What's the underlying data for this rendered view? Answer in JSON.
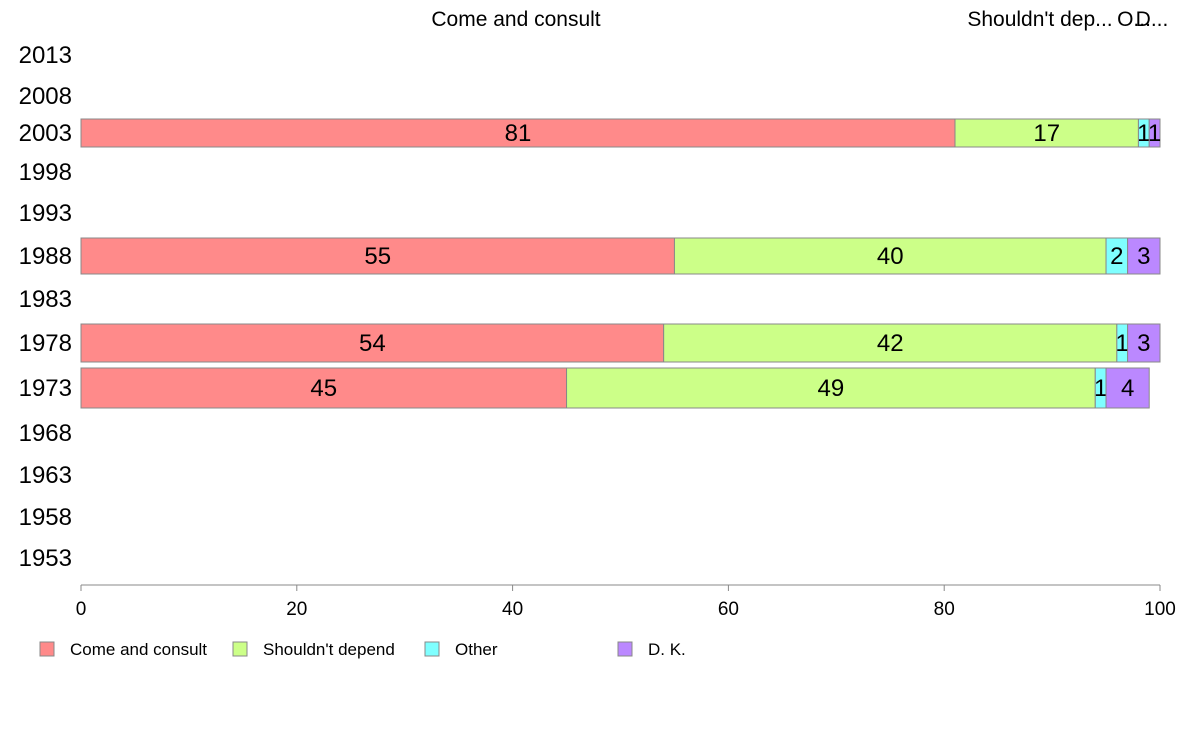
{
  "chart_data": {
    "type": "bar",
    "orientation": "horizontal",
    "stacked": true,
    "categories": [
      "2013",
      "2008",
      "2003",
      "1998",
      "1993",
      "1988",
      "1983",
      "1978",
      "1973",
      "1968",
      "1963",
      "1958",
      "1953"
    ],
    "series": [
      {
        "name": "Come and consult",
        "values": [
          null,
          null,
          81,
          null,
          null,
          55,
          null,
          54,
          45,
          null,
          null,
          null,
          null
        ],
        "color": "#ff8a8a"
      },
      {
        "name": "Shouldn't depend",
        "values": [
          null,
          null,
          17,
          null,
          null,
          40,
          null,
          42,
          49,
          null,
          null,
          null,
          null
        ],
        "color": "#ccff88"
      },
      {
        "name": "Other",
        "values": [
          null,
          null,
          1,
          null,
          null,
          2,
          null,
          1,
          1,
          null,
          null,
          null,
          null
        ],
        "color": "#7fffff"
      },
      {
        "name": "D. K.",
        "values": [
          null,
          null,
          1,
          null,
          null,
          3,
          null,
          3,
          4,
          null,
          null,
          null,
          null
        ],
        "color": "#bb88ff"
      }
    ],
    "top_labels": [
      "Come and consult",
      "Shouldn't dep...",
      "O...",
      "D..."
    ],
    "xlim": [
      0,
      100
    ],
    "xticks": [
      "0",
      "20",
      "40",
      "60",
      "80",
      "100"
    ],
    "legend": [
      "Come and consult",
      "Shouldn't depend",
      "Other",
      "D. K."
    ],
    "legend_position": "bottom",
    "grid": false
  }
}
